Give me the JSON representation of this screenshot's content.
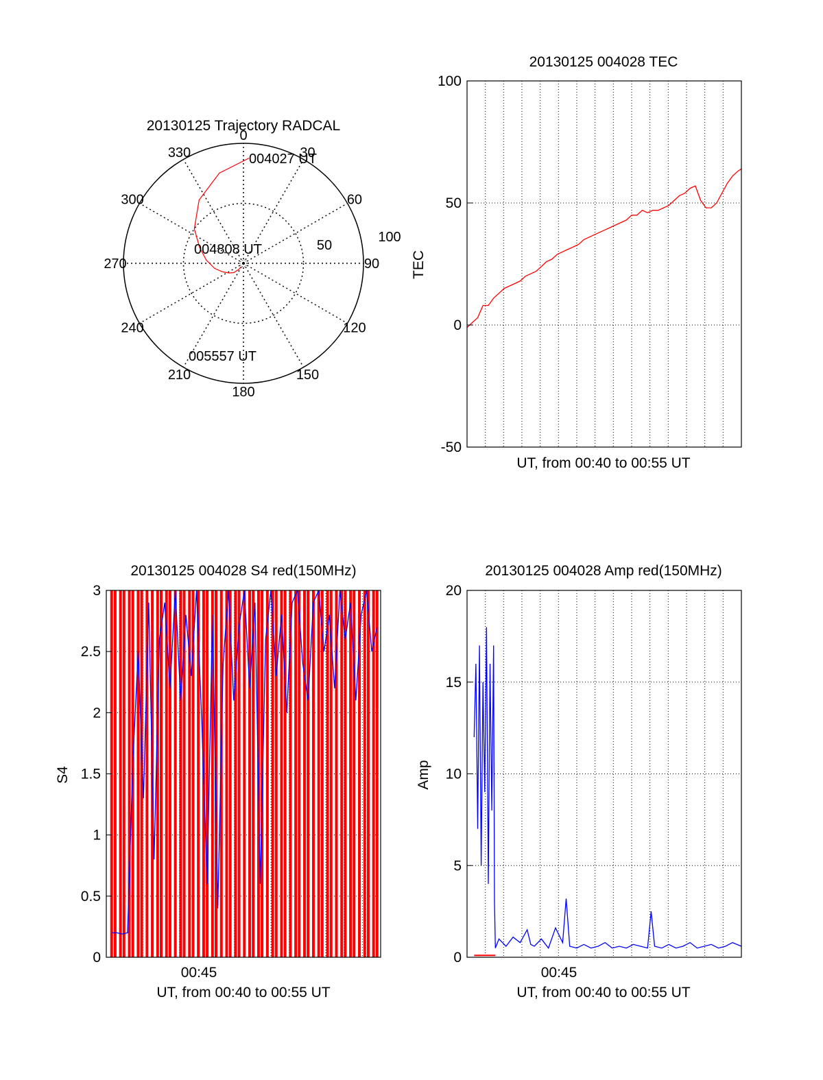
{
  "colors": {
    "red": "#ff0000",
    "blue": "#0000ff",
    "axis": "#000000",
    "grid": "#000000"
  },
  "chart_data": [
    {
      "id": "trajectory",
      "type": "scatter",
      "title": "20130125 Trajectory RADCAL",
      "polar": true,
      "angle_labels": [
        "0",
        "30",
        "60",
        "90",
        "120",
        "150",
        "180",
        "210",
        "240",
        "270",
        "300",
        "330"
      ],
      "radial_labels": [
        "50",
        "100"
      ],
      "point_labels": {
        "start": "004027 UT",
        "mid": "004808 UT",
        "end": "005557 UT"
      },
      "series": [
        {
          "color": "#ff0000",
          "points": [
            {
              "az": 3,
              "el": 11
            },
            {
              "az": 345,
              "el": 20
            },
            {
              "az": 325,
              "el": 32
            },
            {
              "az": 305,
              "el": 45
            },
            {
              "az": 290,
              "el": 55
            },
            {
              "az": 275,
              "el": 62
            },
            {
              "az": 260,
              "el": 68
            },
            {
              "az": 248,
              "el": 73
            },
            {
              "az": 236,
              "el": 77
            },
            {
              "az": 226,
              "el": 80
            },
            {
              "az": 218,
              "el": 84
            },
            {
              "az": 213,
              "el": 87
            }
          ]
        }
      ]
    },
    {
      "id": "tec",
      "type": "line",
      "title": "20130125 004028 TEC",
      "xlabel": "UT, from 00:40 to 00:55 UT",
      "ylabel": "TEC",
      "xlim": [
        0,
        15.5
      ],
      "ylim": [
        -50,
        100
      ],
      "yticks": [
        "100",
        "50",
        "0",
        "-50"
      ],
      "grid": true,
      "series": [
        {
          "color": "#ff0000",
          "x": [
            0.0,
            0.3,
            0.6,
            0.9,
            1.2,
            1.5,
            1.8,
            2.1,
            2.4,
            2.7,
            3.0,
            3.3,
            3.6,
            3.9,
            4.2,
            4.5,
            4.8,
            5.1,
            5.4,
            5.7,
            6.0,
            6.3,
            6.6,
            6.9,
            7.2,
            7.5,
            7.8,
            8.1,
            8.4,
            8.7,
            9.0,
            9.3,
            9.6,
            9.9,
            10.2,
            10.5,
            10.8,
            11.1,
            11.4,
            11.7,
            12.0,
            12.3,
            12.6,
            12.9,
            13.2,
            13.5,
            13.8,
            14.1,
            14.4,
            14.7,
            15.0,
            15.3,
            15.5
          ],
          "y": [
            -1,
            1,
            3,
            8,
            8,
            11,
            13,
            15,
            16,
            17,
            18,
            20,
            21,
            22,
            24,
            26,
            27,
            29,
            30,
            31,
            32,
            33,
            35,
            36,
            37,
            38,
            39,
            40,
            41,
            42,
            43,
            45,
            45,
            47,
            46,
            47,
            47,
            48,
            49,
            51,
            53,
            54,
            56,
            57,
            51,
            48,
            48,
            50,
            54,
            58,
            61,
            63,
            64
          ]
        }
      ]
    },
    {
      "id": "s4",
      "type": "line",
      "title": "20130125 004028 S4 red(150MHz)",
      "xlabel": "UT, from 00:40 to 00:55 UT",
      "ylabel": "S4",
      "xlim": [
        0,
        15.5
      ],
      "ylim": [
        0,
        3
      ],
      "xticks": [
        "00:45"
      ],
      "yticks": [
        "3",
        "2.5",
        "2",
        "1.5",
        "1",
        "0.5",
        "0"
      ],
      "grid": true,
      "series": [
        {
          "color": "#ff0000",
          "x": [
            0.3,
            0.5,
            0.8,
            1.0,
            1.3,
            1.5,
            1.8,
            2.0,
            2.3,
            2.6,
            2.9,
            3.1,
            3.4,
            3.6,
            3.9,
            4.2,
            4.4,
            4.7,
            4.9,
            5.2,
            5.5,
            5.7,
            6.0,
            6.2,
            6.5,
            6.8,
            7.0,
            7.3,
            7.5,
            7.8,
            8.1,
            8.3,
            8.6,
            8.8,
            9.1,
            9.4,
            9.6,
            9.9,
            10.1,
            10.4,
            10.7,
            10.9,
            11.2,
            11.4,
            11.7,
            12.0,
            12.2,
            12.5,
            12.7,
            13.0,
            13.3,
            13.5,
            13.8,
            14.0,
            14.3,
            14.6,
            14.8,
            15.1,
            15.3
          ]
        },
        {
          "color": "#0000ff",
          "x": [
            0.3,
            0.6,
            0.9,
            1.2,
            1.5,
            1.8,
            2.1,
            2.4,
            2.7,
            3.0,
            3.3,
            3.6,
            3.9,
            4.2,
            4.5,
            4.8,
            5.1,
            5.4,
            5.7,
            6.0,
            6.3,
            6.6,
            6.9,
            7.2,
            7.5,
            7.8,
            8.1,
            8.4,
            8.7,
            9.0,
            9.3,
            9.6,
            9.9,
            10.2,
            10.5,
            10.8,
            11.1,
            11.4,
            11.7,
            12.0,
            12.3,
            12.6,
            12.9,
            13.2,
            13.5,
            13.8,
            14.1,
            14.4,
            14.7,
            15.0,
            15.3
          ],
          "y": [
            0.2,
            0.2,
            0.19,
            0.2,
            1.6,
            2.5,
            1.3,
            2.9,
            0.8,
            2.6,
            2.9,
            2.2,
            3.0,
            2.1,
            2.8,
            2.3,
            3.0,
            1.9,
            0.6,
            2.8,
            0.4,
            2.4,
            3.0,
            2.1,
            2.7,
            3.0,
            2.2,
            2.9,
            0.6,
            2.6,
            3.0,
            2.3,
            2.8,
            2.0,
            2.9,
            3.0,
            2.4,
            2.1,
            2.9,
            3.0,
            2.5,
            2.8,
            2.2,
            3.0,
            2.6,
            2.9,
            2.1,
            2.8,
            3.0,
            2.5,
            2.7
          ]
        }
      ]
    },
    {
      "id": "amp",
      "type": "line",
      "title": "20130125 004028 Amp red(150MHz)",
      "xlabel": "UT, from 00:40 to 00:55 UT",
      "ylabel": "Amp",
      "xlim": [
        0,
        15.5
      ],
      "ylim": [
        0,
        20
      ],
      "xticks": [
        "00:45"
      ],
      "yticks": [
        "20",
        "15",
        "10",
        "5",
        "0"
      ],
      "grid": true,
      "series": [
        {
          "color": "#0000ff",
          "x": [
            0.4,
            0.5,
            0.6,
            0.7,
            0.8,
            0.9,
            1.0,
            1.1,
            1.2,
            1.3,
            1.4,
            1.5,
            1.55,
            1.6,
            1.8,
            2.2,
            2.6,
            3.0,
            3.4,
            3.6,
            3.8,
            4.2,
            4.6,
            5.0,
            5.4,
            5.6,
            5.8,
            6.2,
            6.6,
            7.0,
            7.4,
            7.8,
            8.2,
            8.6,
            9.0,
            9.4,
            9.8,
            10.2,
            10.4,
            10.6,
            11.0,
            11.4,
            11.8,
            12.2,
            12.6,
            13.0,
            13.4,
            13.8,
            14.2,
            14.6,
            15.0,
            15.5
          ],
          "y": [
            12,
            16,
            7,
            17,
            5,
            15,
            9,
            18,
            4,
            16,
            8,
            17,
            3,
            0.5,
            1.0,
            0.6,
            1.1,
            0.8,
            1.5,
            0.7,
            0.6,
            1.0,
            0.5,
            1.6,
            0.8,
            3.2,
            0.6,
            0.5,
            0.7,
            0.5,
            0.6,
            0.8,
            0.5,
            0.6,
            0.5,
            0.7,
            0.6,
            0.5,
            2.5,
            0.6,
            0.5,
            0.7,
            0.5,
            0.6,
            0.8,
            0.5,
            0.6,
            0.7,
            0.5,
            0.6,
            0.8,
            0.6
          ]
        },
        {
          "color": "#ff0000",
          "x": [
            0.4,
            0.8,
            1.2,
            1.6,
            6.5,
            8.3
          ],
          "y": [
            0.1,
            0.1,
            0.1,
            0.1,
            0.1,
            0.3
          ]
        }
      ]
    }
  ]
}
